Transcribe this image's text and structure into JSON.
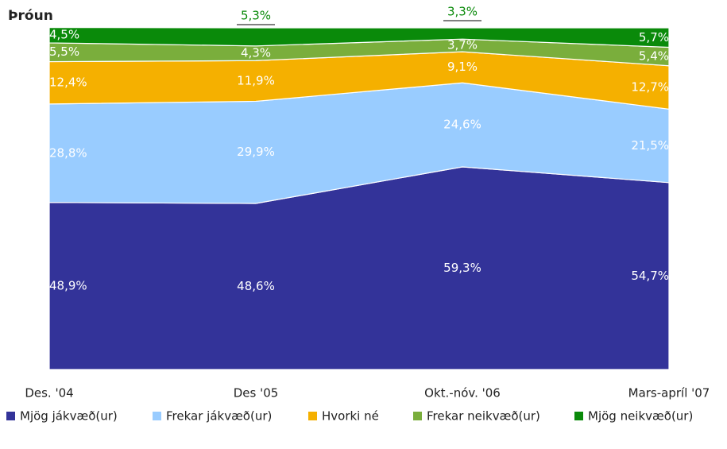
{
  "chart_data": {
    "type": "stacked-area",
    "title": "Þróun",
    "categories": [
      "Des. '04",
      "Des '05",
      "Okt.-nóv. '06",
      "Mars-apríl '07"
    ],
    "ylim": [
      0,
      100
    ],
    "series": [
      {
        "name": "Mjög jákvæð(ur)",
        "color": "#333399",
        "values": [
          48.9,
          48.6,
          59.3,
          54.7
        ],
        "value_labels": [
          "48,9%",
          "48,6%",
          "59,3%",
          "54,7%"
        ]
      },
      {
        "name": "Frekar jákvæð(ur)",
        "color": "#99ccff",
        "values": [
          28.8,
          29.9,
          24.6,
          21.5
        ],
        "value_labels": [
          "28,8%",
          "29,9%",
          "24,6%",
          "21,5%"
        ]
      },
      {
        "name": "Hvorki  né",
        "color": "#f5b000",
        "values": [
          12.4,
          11.9,
          9.1,
          12.7
        ],
        "value_labels": [
          "12,4%",
          "11,9%",
          "9,1%",
          "12,7%"
        ]
      },
      {
        "name": "Frekar neikvæð(ur)",
        "color": "#7aae3c",
        "values": [
          5.5,
          4.3,
          3.7,
          5.4
        ],
        "value_labels": [
          "5,5%",
          "4,3%",
          "3,7%",
          "5,4%"
        ]
      },
      {
        "name": "Mjög neikvæð(ur)",
        "color": "#0a8a0a",
        "values": [
          4.5,
          5.3,
          3.3,
          5.7
        ],
        "value_labels": [
          "4,5%",
          "5,3%",
          "3,3%",
          "5,7%"
        ]
      }
    ]
  }
}
